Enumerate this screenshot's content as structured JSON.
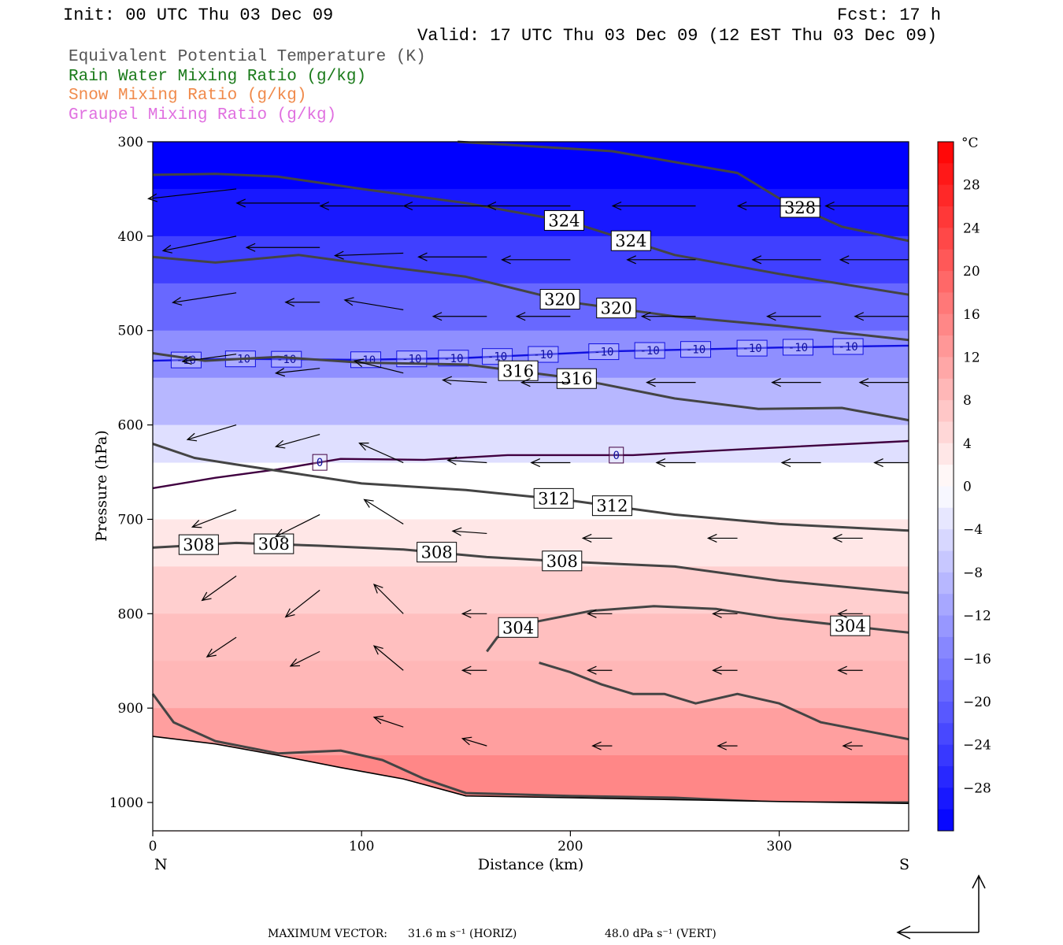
{
  "header": {
    "init": "Init: 00 UTC Thu 03 Dec 09",
    "fcst": "Fcst:   17 h",
    "valid": "Valid: 17 UTC Thu 03 Dec 09 (12 EST Thu 03 Dec 09)"
  },
  "fields": [
    {
      "label": "Equivalent Potential Temperature (K)",
      "color": "#555555"
    },
    {
      "label": "Rain Water Mixing Ratio (g/kg)",
      "color": "#1a7a1a"
    },
    {
      "label": "Snow Mixing Ratio (g/kg)",
      "color": "#f08a4b"
    },
    {
      "label": "Graupel Mixing Ratio (g/kg)",
      "color": "#e070e0"
    }
  ],
  "footer": {
    "max_vector_label": "MAXIMUM VECTOR:",
    "horiz": "31.6 m s⁻¹ (HORIZ)",
    "vert": "48.0 dPa s⁻¹ (VERT)"
  },
  "chart_data": {
    "type": "heatmap",
    "xlabel": "Distance (km)",
    "ylabel": "Pressure (hPa)",
    "xlim": [
      0,
      362
    ],
    "ylim": [
      1030,
      300
    ],
    "x_ticks": [
      0,
      100,
      200,
      300
    ],
    "y_ticks": [
      300,
      400,
      500,
      600,
      700,
      800,
      900,
      1000
    ],
    "x_end_labels": {
      "left": "N",
      "right": "S"
    },
    "colorbar": {
      "unit": "°C",
      "min": -32,
      "max": 32,
      "tick_labels": [
        "28",
        "24",
        "20",
        "16",
        "12",
        "8",
        "4",
        "0",
        "−4",
        "−8",
        "−12",
        "−16",
        "−20",
        "−24",
        "−28"
      ],
      "tick_values": [
        28,
        24,
        20,
        16,
        12,
        8,
        4,
        0,
        -4,
        -8,
        -12,
        -16,
        -20,
        -24,
        -28
      ],
      "cold_color": "#0000ff",
      "warm_color": "#ff0000"
    },
    "temperature_bands": [
      {
        "p": 300,
        "t": -32
      },
      {
        "p": 350,
        "t": -29
      },
      {
        "p": 400,
        "t": -24
      },
      {
        "p": 450,
        "t": -19
      },
      {
        "p": 500,
        "t": -14
      },
      {
        "p": 550,
        "t": -9
      },
      {
        "p": 600,
        "t": -4
      },
      {
        "p": 640,
        "t": 0
      },
      {
        "p": 700,
        "t": 3
      },
      {
        "p": 750,
        "t": 6
      },
      {
        "p": 800,
        "t": 8
      },
      {
        "p": 850,
        "t": 9
      },
      {
        "p": 900,
        "t": 12
      },
      {
        "p": 950,
        "t": 15
      },
      {
        "p": 1000,
        "t": 18
      }
    ],
    "isotherm_contours": [
      {
        "value": -10,
        "labels": [
          "-10",
          "-10",
          "-10",
          "-10",
          "-10",
          "-10",
          "-10",
          "-10",
          "-10",
          "-10",
          "-10",
          "-10",
          "-10",
          "-10",
          "-10"
        ],
        "label_x": [
          16,
          42,
          64,
          102,
          124,
          144,
          165,
          187,
          216,
          238,
          260,
          287,
          309,
          333,
          0
        ],
        "points": [
          [
            0,
            532
          ],
          [
            40,
            530
          ],
          [
            100,
            531
          ],
          [
            150,
            529
          ],
          [
            180,
            526
          ],
          [
            220,
            522
          ],
          [
            260,
            520
          ],
          [
            300,
            518
          ],
          [
            362,
            516
          ]
        ]
      },
      {
        "value": 0,
        "labels": [
          "0",
          "0"
        ],
        "label_x": [
          80,
          222
        ],
        "points": [
          [
            0,
            667
          ],
          [
            30,
            656
          ],
          [
            60,
            647
          ],
          [
            90,
            636
          ],
          [
            130,
            637
          ],
          [
            170,
            632
          ],
          [
            230,
            632
          ],
          [
            280,
            626
          ],
          [
            362,
            617
          ]
        ]
      }
    ],
    "theta_e_contours": [
      {
        "value": 328,
        "label_x": [
          310
        ],
        "points": [
          [
            146,
            300
          ],
          [
            220,
            310
          ],
          [
            280,
            333
          ],
          [
            300,
            360
          ],
          [
            330,
            390
          ],
          [
            362,
            405
          ]
        ]
      },
      {
        "value": 324,
        "label_x": [
          197,
          229
        ],
        "points": [
          [
            0,
            335
          ],
          [
            30,
            334
          ],
          [
            60,
            337
          ],
          [
            100,
            350
          ],
          [
            150,
            365
          ],
          [
            200,
            385
          ],
          [
            250,
            420
          ],
          [
            300,
            440
          ],
          [
            362,
            462
          ]
        ]
      },
      {
        "value": 320,
        "label_x": [
          195,
          222
        ],
        "points": [
          [
            0,
            422
          ],
          [
            30,
            428
          ],
          [
            70,
            420
          ],
          [
            110,
            432
          ],
          [
            150,
            443
          ],
          [
            200,
            470
          ],
          [
            250,
            485
          ],
          [
            300,
            495
          ],
          [
            362,
            510
          ]
        ]
      },
      {
        "value": 316,
        "label_x": [
          175,
          203
        ],
        "points": [
          [
            0,
            524
          ],
          [
            25,
            532
          ],
          [
            60,
            528
          ],
          [
            100,
            534
          ],
          [
            150,
            536
          ],
          [
            200,
            550
          ],
          [
            250,
            572
          ],
          [
            290,
            583
          ],
          [
            330,
            582
          ],
          [
            362,
            595
          ]
        ]
      },
      {
        "value": 312,
        "label_x": [
          192,
          220
        ],
        "points": [
          [
            0,
            620
          ],
          [
            20,
            635
          ],
          [
            40,
            642
          ],
          [
            70,
            652
          ],
          [
            100,
            662
          ],
          [
            150,
            669
          ],
          [
            200,
            680
          ],
          [
            250,
            695
          ],
          [
            300,
            705
          ],
          [
            362,
            712
          ]
        ]
      },
      {
        "value": 308,
        "label_x": [
          196,
          22,
          58,
          136
        ],
        "points": [
          [
            0,
            730
          ],
          [
            40,
            725
          ],
          [
            80,
            728
          ],
          [
            120,
            732
          ],
          [
            160,
            740
          ],
          [
            200,
            745
          ],
          [
            250,
            750
          ],
          [
            300,
            765
          ],
          [
            362,
            778
          ]
        ]
      },
      {
        "value": 304,
        "label_x": [
          175,
          334
        ],
        "points": [
          [
            160,
            840
          ],
          [
            165,
            825
          ],
          [
            180,
            810
          ],
          [
            210,
            797
          ],
          [
            240,
            792
          ],
          [
            270,
            795
          ],
          [
            300,
            805
          ],
          [
            362,
            820
          ]
        ]
      },
      {
        "value": 304,
        "label_x": [],
        "points": [
          [
            185,
            852
          ],
          [
            200,
            862
          ],
          [
            215,
            875
          ],
          [
            230,
            885
          ],
          [
            245,
            885
          ],
          [
            260,
            895
          ],
          [
            280,
            885
          ],
          [
            300,
            895
          ],
          [
            320,
            915
          ],
          [
            362,
            933
          ]
        ]
      },
      {
        "value": 308,
        "label_x": [],
        "points": [
          [
            0,
            885
          ],
          [
            10,
            915
          ],
          [
            30,
            935
          ],
          [
            60,
            948
          ],
          [
            90,
            945
          ],
          [
            110,
            955
          ],
          [
            130,
            975
          ],
          [
            150,
            990
          ],
          [
            200,
            993
          ],
          [
            250,
            995
          ],
          [
            300,
            1000
          ],
          [
            362,
            1000
          ]
        ]
      }
    ],
    "terrain_surface": [
      [
        0,
        930
      ],
      [
        30,
        938
      ],
      [
        60,
        950
      ],
      [
        90,
        963
      ],
      [
        120,
        975
      ],
      [
        150,
        993
      ],
      [
        200,
        995
      ],
      [
        250,
        997
      ],
      [
        300,
        999
      ],
      [
        362,
        1001
      ]
    ],
    "wind_vectors": [
      {
        "x": 40,
        "p": 350,
        "u": -36,
        "w": -4
      },
      {
        "x": 80,
        "p": 365,
        "u": -34,
        "w": 0
      },
      {
        "x": 120,
        "p": 368,
        "u": -34,
        "w": 0
      },
      {
        "x": 160,
        "p": 368,
        "u": -34,
        "w": 0
      },
      {
        "x": 200,
        "p": 368,
        "u": -34,
        "w": 0
      },
      {
        "x": 260,
        "p": 368,
        "u": -34,
        "w": 0
      },
      {
        "x": 320,
        "p": 368,
        "u": -34,
        "w": 0
      },
      {
        "x": 362,
        "p": 368,
        "u": -34,
        "w": 0
      },
      {
        "x": 40,
        "p": 400,
        "u": -30,
        "w": -6
      },
      {
        "x": 80,
        "p": 412,
        "u": -30,
        "w": 0
      },
      {
        "x": 120,
        "p": 418,
        "u": -28,
        "w": -1
      },
      {
        "x": 160,
        "p": 422,
        "u": -28,
        "w": 0
      },
      {
        "x": 200,
        "p": 425,
        "u": -28,
        "w": 0
      },
      {
        "x": 260,
        "p": 425,
        "u": -28,
        "w": 0
      },
      {
        "x": 320,
        "p": 425,
        "u": -28,
        "w": 0
      },
      {
        "x": 362,
        "p": 425,
        "u": -28,
        "w": 0
      },
      {
        "x": 40,
        "p": 460,
        "u": -26,
        "w": -4
      },
      {
        "x": 80,
        "p": 470,
        "u": -14,
        "w": 0
      },
      {
        "x": 120,
        "p": 478,
        "u": -24,
        "w": 4
      },
      {
        "x": 160,
        "p": 485,
        "u": -22,
        "w": 0
      },
      {
        "x": 200,
        "p": 485,
        "u": -22,
        "w": 0
      },
      {
        "x": 260,
        "p": 485,
        "u": -22,
        "w": 0
      },
      {
        "x": 320,
        "p": 485,
        "u": -22,
        "w": 0
      },
      {
        "x": 362,
        "p": 485,
        "u": -22,
        "w": 0
      },
      {
        "x": 40,
        "p": 525,
        "u": -22,
        "w": -3
      },
      {
        "x": 80,
        "p": 540,
        "u": -18,
        "w": -2
      },
      {
        "x": 120,
        "p": 545,
        "u": -20,
        "w": 5
      },
      {
        "x": 160,
        "p": 555,
        "u": -18,
        "w": 1
      },
      {
        "x": 200,
        "p": 555,
        "u": -20,
        "w": 0
      },
      {
        "x": 260,
        "p": 555,
        "u": -20,
        "w": 0
      },
      {
        "x": 320,
        "p": 555,
        "u": -20,
        "w": 0
      },
      {
        "x": 362,
        "p": 555,
        "u": -20,
        "w": 0
      },
      {
        "x": 40,
        "p": 600,
        "u": -20,
        "w": -6
      },
      {
        "x": 80,
        "p": 610,
        "u": -18,
        "w": -5
      },
      {
        "x": 120,
        "p": 640,
        "u": -18,
        "w": 8
      },
      {
        "x": 160,
        "p": 640,
        "u": -16,
        "w": 1
      },
      {
        "x": 200,
        "p": 640,
        "u": -16,
        "w": 0
      },
      {
        "x": 260,
        "p": 640,
        "u": -16,
        "w": 0
      },
      {
        "x": 320,
        "p": 640,
        "u": -16,
        "w": 0
      },
      {
        "x": 362,
        "p": 640,
        "u": -14,
        "w": 0
      },
      {
        "x": 40,
        "p": 690,
        "u": -18,
        "w": -7
      },
      {
        "x": 80,
        "p": 695,
        "u": -18,
        "w": -9
      },
      {
        "x": 120,
        "p": 705,
        "u": -16,
        "w": 10
      },
      {
        "x": 160,
        "p": 715,
        "u": -14,
        "w": 1
      },
      {
        "x": 220,
        "p": 720,
        "u": -12,
        "w": 0
      },
      {
        "x": 280,
        "p": 720,
        "u": -12,
        "w": 0
      },
      {
        "x": 340,
        "p": 720,
        "u": -12,
        "w": 0
      },
      {
        "x": 40,
        "p": 760,
        "u": -14,
        "w": -10
      },
      {
        "x": 80,
        "p": 775,
        "u": -14,
        "w": -11
      },
      {
        "x": 120,
        "p": 800,
        "u": -12,
        "w": 12
      },
      {
        "x": 160,
        "p": 800,
        "u": -10,
        "w": 0
      },
      {
        "x": 220,
        "p": 800,
        "u": -10,
        "w": 0
      },
      {
        "x": 280,
        "p": 800,
        "u": -10,
        "w": 0
      },
      {
        "x": 340,
        "p": 800,
        "u": -10,
        "w": 0
      },
      {
        "x": 40,
        "p": 825,
        "u": -12,
        "w": -8
      },
      {
        "x": 80,
        "p": 840,
        "u": -12,
        "w": -6
      },
      {
        "x": 120,
        "p": 860,
        "u": -12,
        "w": 10
      },
      {
        "x": 160,
        "p": 860,
        "u": -10,
        "w": 0
      },
      {
        "x": 220,
        "p": 860,
        "u": -10,
        "w": 0
      },
      {
        "x": 280,
        "p": 860,
        "u": -10,
        "w": 0
      },
      {
        "x": 340,
        "p": 860,
        "u": -10,
        "w": 0
      },
      {
        "x": 120,
        "p": 920,
        "u": -12,
        "w": 4
      },
      {
        "x": 160,
        "p": 940,
        "u": -10,
        "w": 3
      },
      {
        "x": 220,
        "p": 940,
        "u": -8,
        "w": 0
      },
      {
        "x": 280,
        "p": 940,
        "u": -8,
        "w": 0
      },
      {
        "x": 340,
        "p": 940,
        "u": -8,
        "w": 0
      }
    ]
  }
}
